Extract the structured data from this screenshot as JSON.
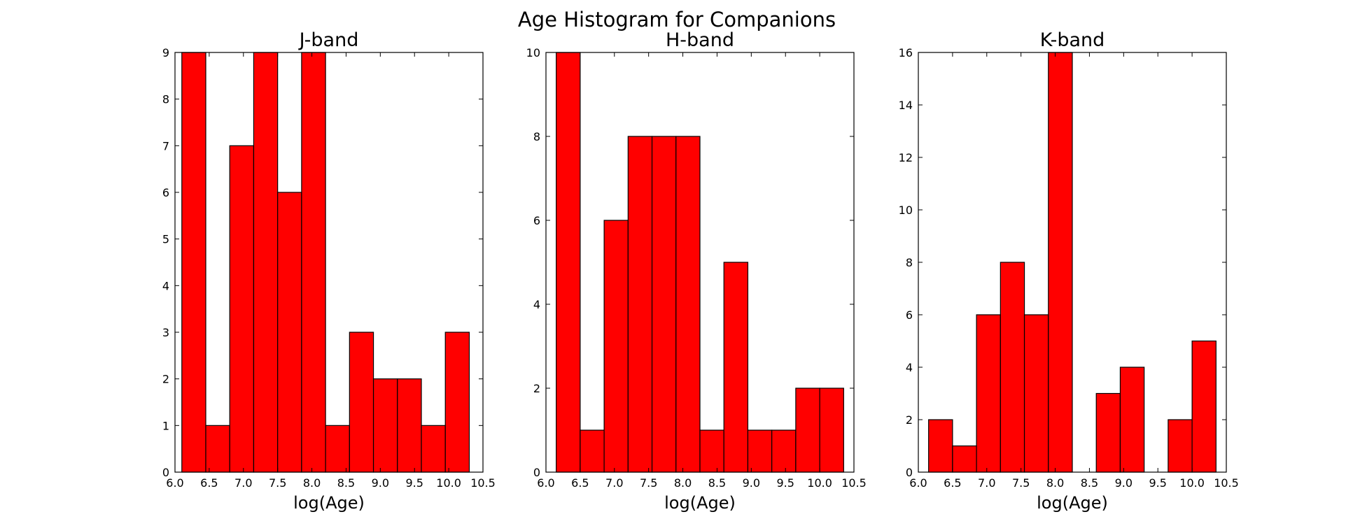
{
  "figure": {
    "suptitle": "Age Histogram for Companions"
  },
  "chart_data": [
    {
      "type": "bar",
      "title": "J-band",
      "xlabel": "log(Age)",
      "ylabel": "",
      "xlim": [
        6.0,
        10.5
      ],
      "ylim": [
        0,
        9
      ],
      "xticks": [
        "6.0",
        "6.5",
        "7.0",
        "7.5",
        "8.0",
        "8.5",
        "9.0",
        "9.5",
        "10.0",
        "10.5"
      ],
      "yticks": [
        "0",
        "1",
        "2",
        "3",
        "4",
        "5",
        "6",
        "7",
        "8",
        "9"
      ],
      "bin_edges": [
        6.1,
        6.45,
        6.8,
        7.15,
        7.5,
        7.85,
        8.2,
        8.55,
        8.9,
        9.25,
        9.6,
        9.95,
        10.3
      ],
      "counts": [
        9,
        1,
        7,
        9,
        6,
        9,
        1,
        3,
        2,
        2,
        1,
        3
      ],
      "color": "#ff0000"
    },
    {
      "type": "bar",
      "title": "H-band",
      "xlabel": "log(Age)",
      "ylabel": "",
      "xlim": [
        6.0,
        10.5
      ],
      "ylim": [
        0,
        10
      ],
      "xticks": [
        "6.0",
        "6.5",
        "7.0",
        "7.5",
        "8.0",
        "8.5",
        "9.0",
        "9.5",
        "10.0",
        "10.5"
      ],
      "yticks": [
        "0",
        "2",
        "4",
        "6",
        "8",
        "10"
      ],
      "bin_edges": [
        6.15,
        6.5,
        6.85,
        7.2,
        7.55,
        7.9,
        8.25,
        8.6,
        8.95,
        9.3,
        9.65,
        10.0,
        10.35
      ],
      "counts": [
        10,
        1,
        6,
        8,
        8,
        8,
        1,
        5,
        1,
        1,
        2,
        2
      ],
      "color": "#ff0000"
    },
    {
      "type": "bar",
      "title": "K-band",
      "xlabel": "log(Age)",
      "ylabel": "",
      "xlim": [
        6.0,
        10.5
      ],
      "ylim": [
        0,
        16
      ],
      "xticks": [
        "6.0",
        "6.5",
        "7.0",
        "7.5",
        "8.0",
        "8.5",
        "9.0",
        "9.5",
        "10.0",
        "10.5"
      ],
      "yticks": [
        "0",
        "2",
        "4",
        "6",
        "8",
        "10",
        "12",
        "14",
        "16"
      ],
      "bin_edges": [
        6.15,
        6.5,
        6.85,
        7.2,
        7.55,
        7.9,
        8.25,
        8.6,
        8.95,
        9.3,
        9.65,
        10.0,
        10.35
      ],
      "counts": [
        2,
        1,
        6,
        8,
        6,
        16,
        0,
        3,
        4,
        0,
        2,
        5
      ],
      "color": "#ff0000"
    }
  ]
}
